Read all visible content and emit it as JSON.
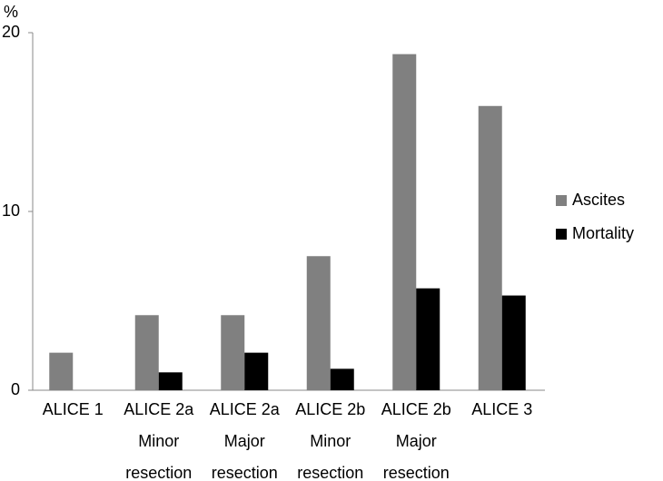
{
  "chart_data": {
    "type": "bar",
    "y_label": "%",
    "categories": [
      [
        "ALICE 1"
      ],
      [
        "ALICE 2a",
        "Minor",
        "resection"
      ],
      [
        "ALICE 2a",
        "Major",
        "resection"
      ],
      [
        "ALICE 2b",
        "Minor",
        "resection"
      ],
      [
        "ALICE 2b",
        "Major",
        "resection"
      ],
      [
        "ALICE 3"
      ]
    ],
    "series": [
      {
        "name": "Ascites",
        "color": "#808080",
        "values": [
          2.1,
          4.2,
          4.2,
          7.5,
          18.8,
          15.9
        ]
      },
      {
        "name": "Mortality",
        "color": "#000000",
        "values": [
          0,
          1.0,
          2.1,
          1.2,
          5.7,
          5.3
        ]
      }
    ],
    "ylim": [
      0,
      20
    ],
    "yticks": [
      0,
      10,
      20
    ],
    "legend": "right"
  }
}
